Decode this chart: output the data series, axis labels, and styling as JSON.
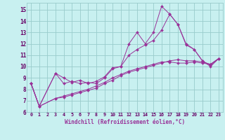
{
  "background_color": "#c8f0f0",
  "grid_color": "#99cccc",
  "line_color": "#993399",
  "xlabel": "Windchill (Refroidissement éolien,°C)",
  "xlim": [
    -0.5,
    23.5
  ],
  "ylim": [
    6,
    15.6
  ],
  "yticks": [
    6,
    7,
    8,
    9,
    10,
    11,
    12,
    13,
    14,
    15
  ],
  "xticks": [
    0,
    1,
    2,
    3,
    4,
    5,
    6,
    7,
    8,
    9,
    10,
    11,
    12,
    13,
    14,
    15,
    16,
    17,
    18,
    19,
    20,
    21,
    22,
    23
  ],
  "lines": [
    {
      "x": [
        0,
        1,
        3,
        4,
        5,
        6,
        7,
        8,
        9,
        10,
        11,
        12,
        13,
        14,
        15,
        16,
        17,
        18,
        19,
        20,
        21,
        22,
        23
      ],
      "y": [
        8.5,
        6.5,
        9.4,
        9.0,
        8.6,
        8.8,
        8.5,
        8.7,
        9.1,
        9.9,
        10.0,
        12.0,
        13.0,
        12.0,
        13.0,
        15.3,
        14.6,
        13.7,
        12.0,
        11.5,
        10.5,
        10.1,
        10.7
      ]
    },
    {
      "x": [
        0,
        1,
        3,
        4,
        5,
        6,
        7,
        8,
        9,
        10,
        11,
        12,
        13,
        14,
        15,
        16,
        17,
        18,
        19,
        20,
        21,
        22,
        23
      ],
      "y": [
        8.5,
        6.5,
        9.4,
        8.5,
        8.7,
        8.5,
        8.6,
        8.5,
        9.0,
        9.8,
        10.0,
        11.0,
        11.5,
        11.9,
        12.3,
        13.2,
        14.6,
        13.7,
        11.9,
        11.5,
        10.5,
        10.0,
        10.7
      ]
    },
    {
      "x": [
        0,
        1,
        3,
        4,
        5,
        6,
        7,
        8,
        9,
        10,
        11,
        12,
        13,
        14,
        15,
        16,
        17,
        18,
        19,
        20,
        21,
        22,
        23
      ],
      "y": [
        8.5,
        6.5,
        7.2,
        7.3,
        7.5,
        7.7,
        7.9,
        8.1,
        8.5,
        8.8,
        9.2,
        9.5,
        9.7,
        9.9,
        10.1,
        10.3,
        10.5,
        10.6,
        10.5,
        10.5,
        10.4,
        10.2,
        10.7
      ]
    },
    {
      "x": [
        0,
        1,
        3,
        4,
        5,
        6,
        7,
        8,
        9,
        10,
        11,
        12,
        13,
        14,
        15,
        16,
        17,
        18,
        19,
        20,
        21,
        22,
        23
      ],
      "y": [
        8.5,
        6.5,
        7.2,
        7.4,
        7.6,
        7.8,
        8.0,
        8.3,
        8.6,
        9.0,
        9.3,
        9.6,
        9.8,
        10.0,
        10.2,
        10.4,
        10.4,
        10.3,
        10.3,
        10.4,
        10.3,
        10.2,
        10.7
      ]
    }
  ]
}
